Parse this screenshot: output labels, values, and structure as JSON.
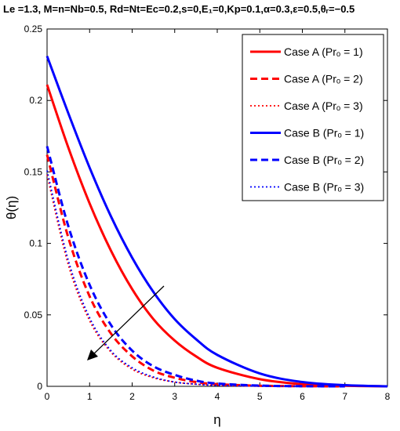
{
  "chart_data": {
    "type": "line",
    "title": "Le =1.3, M=n=Nb=0.5, Rd=Nt=Ec=0.2,s=0,E₁=0,Kp=0.1,α=0.3,ε=0.5,θᵣ=−0.5",
    "xlabel": "η",
    "ylabel": "θ(η)",
    "xlim": [
      0,
      8
    ],
    "ylim": [
      0,
      0.25
    ],
    "xticks": [
      0,
      1,
      2,
      3,
      4,
      5,
      6,
      7,
      8
    ],
    "yticks": [
      0,
      0.05,
      0.1,
      0.15,
      0.2,
      0.25
    ],
    "xtick_labels": [
      "0",
      "1",
      "2",
      "3",
      "4",
      "5",
      "6",
      "7",
      "8"
    ],
    "ytick_labels": [
      "0",
      "0.05",
      "0.1",
      "0.15",
      "0.2",
      "0.25"
    ],
    "grid": false,
    "legend_position": "top-right",
    "series": [
      {
        "name": "Case A (Prₒ = 1)",
        "color": "#ff0000",
        "style": "solid",
        "x": [
          0,
          0.5,
          1,
          1.5,
          2,
          2.5,
          3,
          3.5,
          4,
          5,
          6,
          7,
          8
        ],
        "y": [
          0.211,
          0.167,
          0.128,
          0.095,
          0.068,
          0.047,
          0.032,
          0.021,
          0.013,
          0.005,
          0.0015,
          0.0004,
          0
        ]
      },
      {
        "name": "Case A (Prₒ = 2)",
        "color": "#ff0000",
        "style": "dashed",
        "x": [
          0,
          0.5,
          1,
          1.5,
          2,
          2.5,
          3,
          3.5,
          4,
          5,
          6,
          7
        ],
        "y": [
          0.162,
          0.104,
          0.063,
          0.037,
          0.021,
          0.011,
          0.006,
          0.003,
          0.0015,
          0.0004,
          0.0001,
          0
        ]
      },
      {
        "name": "Case A (Prₒ = 3)",
        "color": "#ff0000",
        "style": "dotted",
        "x": [
          0,
          0.5,
          1,
          1.5,
          2,
          2.5,
          3,
          3.5,
          4,
          5,
          6
        ],
        "y": [
          0.148,
          0.085,
          0.046,
          0.024,
          0.012,
          0.006,
          0.003,
          0.0015,
          0.0007,
          0.0001,
          0
        ]
      },
      {
        "name": "Case B (Prₒ = 1)",
        "color": "#0000ff",
        "style": "solid",
        "x": [
          0,
          0.5,
          1,
          1.5,
          2,
          2.5,
          3,
          3.5,
          4,
          5,
          6,
          7,
          8
        ],
        "y": [
          0.231,
          0.191,
          0.153,
          0.119,
          0.09,
          0.066,
          0.047,
          0.033,
          0.022,
          0.009,
          0.003,
          0.0008,
          0
        ]
      },
      {
        "name": "Case B (Prₒ = 2)",
        "color": "#0000ff",
        "style": "dashed",
        "x": [
          0,
          0.5,
          1,
          1.5,
          2,
          2.5,
          3,
          3.5,
          4,
          5,
          6,
          7
        ],
        "y": [
          0.168,
          0.112,
          0.071,
          0.043,
          0.025,
          0.014,
          0.008,
          0.004,
          0.002,
          0.0005,
          0.0001,
          0
        ]
      },
      {
        "name": "Case B (Prₒ = 3)",
        "color": "#0000ff",
        "style": "dotted",
        "x": [
          0,
          0.5,
          1,
          1.5,
          2,
          2.5,
          3,
          3.5,
          4,
          5,
          6
        ],
        "y": [
          0.151,
          0.088,
          0.048,
          0.025,
          0.013,
          0.0065,
          0.003,
          0.0015,
          0.0007,
          0.0001,
          0
        ]
      }
    ]
  }
}
